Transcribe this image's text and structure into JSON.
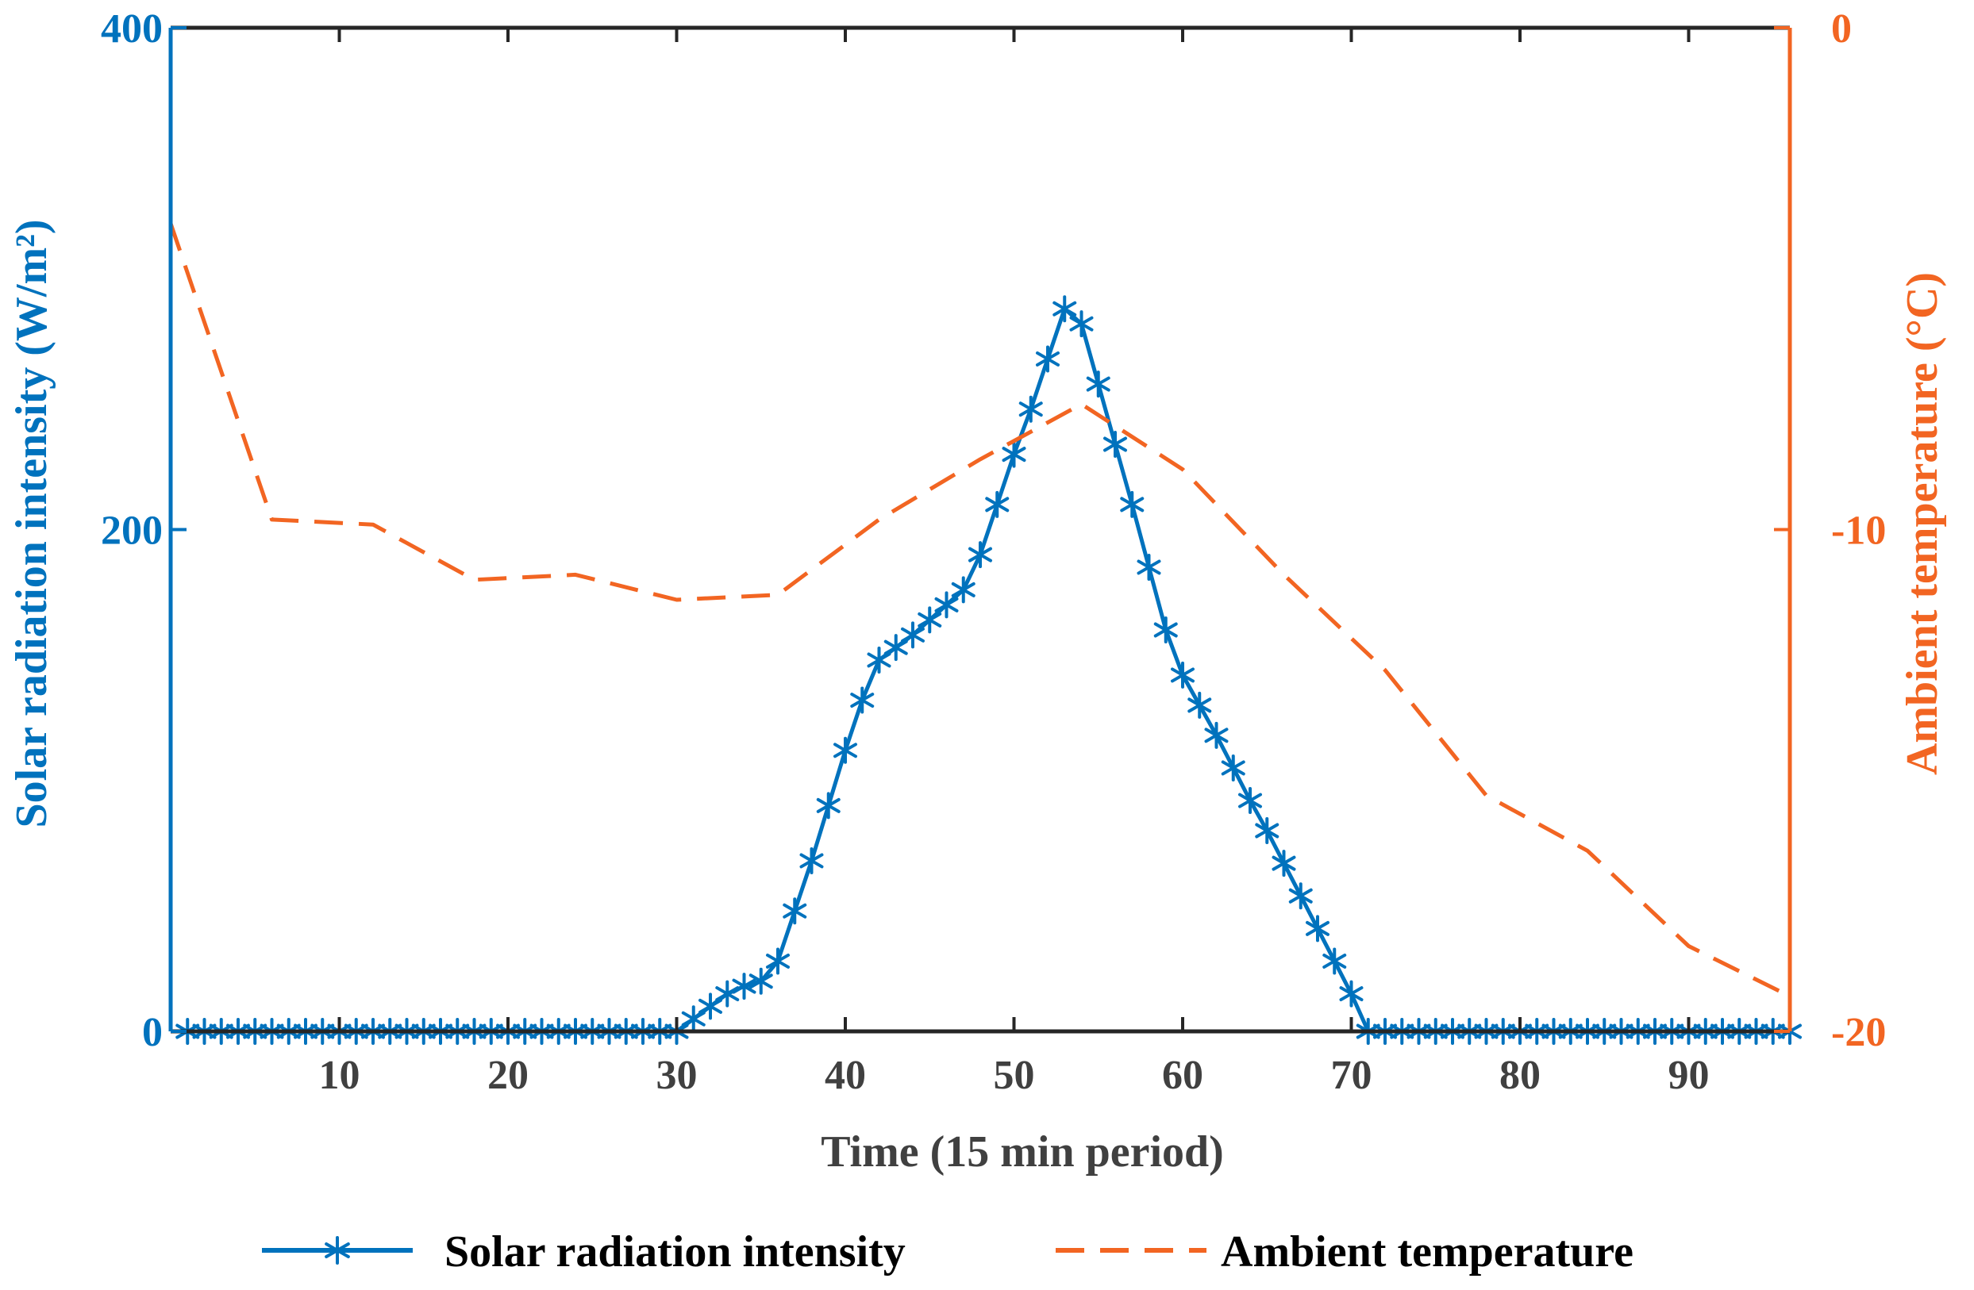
{
  "chart_data": {
    "type": "line",
    "xlabel": "Time (15 min period)",
    "x_ticks": [
      10,
      20,
      30,
      40,
      50,
      60,
      70,
      80,
      90
    ],
    "xlim": [
      0,
      96
    ],
    "left_axis": {
      "label": "Solar radiation intensity (W/m²)",
      "ylim": [
        0,
        400
      ],
      "ticks": [
        0,
        200,
        400
      ],
      "color": "#0072BD"
    },
    "right_axis": {
      "label": "Ambient temperature (°C)",
      "ylim": [
        -20,
        0
      ],
      "ticks": [
        -20,
        -10,
        0
      ],
      "color": "#F26522"
    },
    "legend_placement": "bottom-center",
    "grid": false,
    "series": [
      {
        "name": "Solar radiation intensity",
        "axis": "left",
        "color": "#0072BD",
        "line_style": "solid",
        "marker": "asterisk",
        "x": [
          1,
          2,
          3,
          4,
          5,
          6,
          7,
          8,
          9,
          10,
          11,
          12,
          13,
          14,
          15,
          16,
          17,
          18,
          19,
          20,
          21,
          22,
          23,
          24,
          25,
          26,
          27,
          28,
          29,
          30,
          31,
          32,
          33,
          34,
          35,
          36,
          37,
          38,
          39,
          40,
          41,
          42,
          43,
          44,
          45,
          46,
          47,
          48,
          49,
          50,
          51,
          52,
          53,
          54,
          55,
          56,
          57,
          58,
          59,
          60,
          61,
          62,
          63,
          64,
          65,
          66,
          67,
          68,
          69,
          70,
          71,
          72,
          73,
          74,
          75,
          76,
          77,
          78,
          79,
          80,
          81,
          82,
          83,
          84,
          85,
          86,
          87,
          88,
          89,
          90,
          91,
          92,
          93,
          94,
          95,
          96
        ],
        "values": [
          0,
          0,
          0,
          0,
          0,
          0,
          0,
          0,
          0,
          0,
          0,
          0,
          0,
          0,
          0,
          0,
          0,
          0,
          0,
          0,
          0,
          0,
          0,
          0,
          0,
          0,
          0,
          0,
          0,
          0,
          5,
          10,
          15,
          18,
          20,
          28,
          48,
          68,
          90,
          112,
          132,
          148,
          153,
          158,
          164,
          170,
          176,
          190,
          210,
          230,
          248,
          268,
          288,
          282,
          258,
          234,
          210,
          185,
          160,
          142,
          130,
          118,
          105,
          92,
          80,
          67,
          54,
          41,
          28,
          15,
          0,
          0,
          0,
          0,
          0,
          0,
          0,
          0,
          0,
          0,
          0,
          0,
          0,
          0,
          0,
          0,
          0,
          0,
          0,
          0,
          0,
          0,
          0,
          0,
          0,
          0
        ]
      },
      {
        "name": "Ambient temperature",
        "axis": "right",
        "color": "#F26522",
        "line_style": "dashed",
        "marker": "none",
        "x": [
          0,
          6,
          12,
          18,
          24,
          30,
          36,
          42,
          48,
          54,
          60,
          66,
          72,
          78,
          84,
          90,
          96
        ],
        "values": [
          -3.9,
          -9.8,
          -9.9,
          -11.0,
          -10.9,
          -11.4,
          -11.3,
          -9.8,
          -8.6,
          -7.5,
          -8.8,
          -10.9,
          -12.8,
          -15.3,
          -16.4,
          -18.3,
          -19.3
        ]
      }
    ]
  }
}
